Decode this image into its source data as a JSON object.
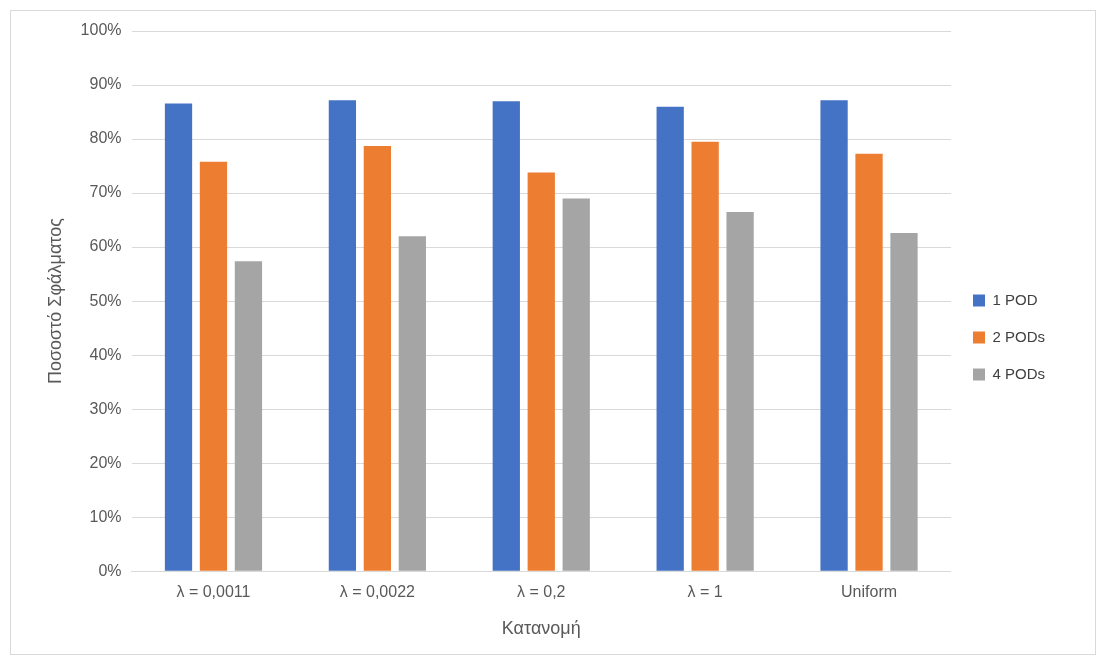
{
  "chart_data": {
    "type": "bar",
    "xlabel": "Κατανομή",
    "ylabel": "Ποσοστό Σφάλματος",
    "categories": [
      "λ = 0,0011",
      "λ = 0,0022",
      "λ = 0,2",
      "λ = 1",
      "Uniform"
    ],
    "series": [
      {
        "name": "1 POD",
        "color": "#4472c4",
        "values": [
          86.6,
          87.2,
          87.0,
          86.0,
          87.2
        ]
      },
      {
        "name": "2 PODs",
        "color": "#ed7d31",
        "values": [
          75.8,
          78.7,
          73.8,
          79.5,
          77.3
        ]
      },
      {
        "name": "4 PODs",
        "color": "#a5a5a5",
        "values": [
          57.4,
          62.0,
          69.0,
          66.5,
          62.6
        ]
      }
    ],
    "ylim": [
      0,
      100
    ],
    "yticks": [
      {
        "value": 0,
        "label": "0%"
      },
      {
        "value": 10,
        "label": "10%"
      },
      {
        "value": 20,
        "label": "20%"
      },
      {
        "value": 30,
        "label": "30%"
      },
      {
        "value": 40,
        "label": "40%"
      },
      {
        "value": 50,
        "label": "50%"
      },
      {
        "value": 60,
        "label": "60%"
      },
      {
        "value": 70,
        "label": "70%"
      },
      {
        "value": 80,
        "label": "80%"
      },
      {
        "value": 90,
        "label": "90%"
      },
      {
        "value": 100,
        "label": "100%"
      }
    ],
    "grid": "y",
    "legend": "right"
  }
}
